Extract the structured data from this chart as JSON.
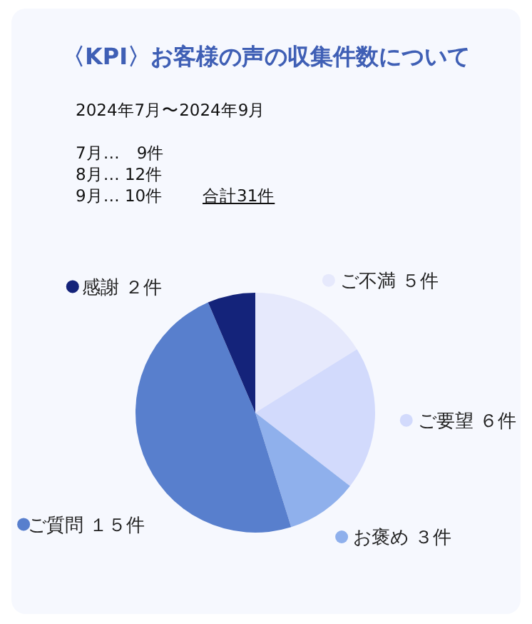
{
  "chart_data": {
    "type": "pie",
    "title": "〈KPI〉お客様の声の収集件数について",
    "subtitle": "2024年7月〜2024年9月",
    "annotations": [
      "7月…　9件",
      "8月… 12件",
      "9月… 10件",
      "合計31件"
    ],
    "categories": [
      "ご不満",
      "ご要望",
      "お褒め",
      "ご質問",
      "感謝"
    ],
    "values": [
      5,
      6,
      3,
      15,
      2
    ],
    "value_labels": [
      "５件",
      "６件",
      "３件",
      "１５件",
      "２件"
    ],
    "colors": [
      "#e6e9fc",
      "#d2dafc",
      "#8fb0ec",
      "#587fcd",
      "#14237a"
    ],
    "legend": "right"
  }
}
